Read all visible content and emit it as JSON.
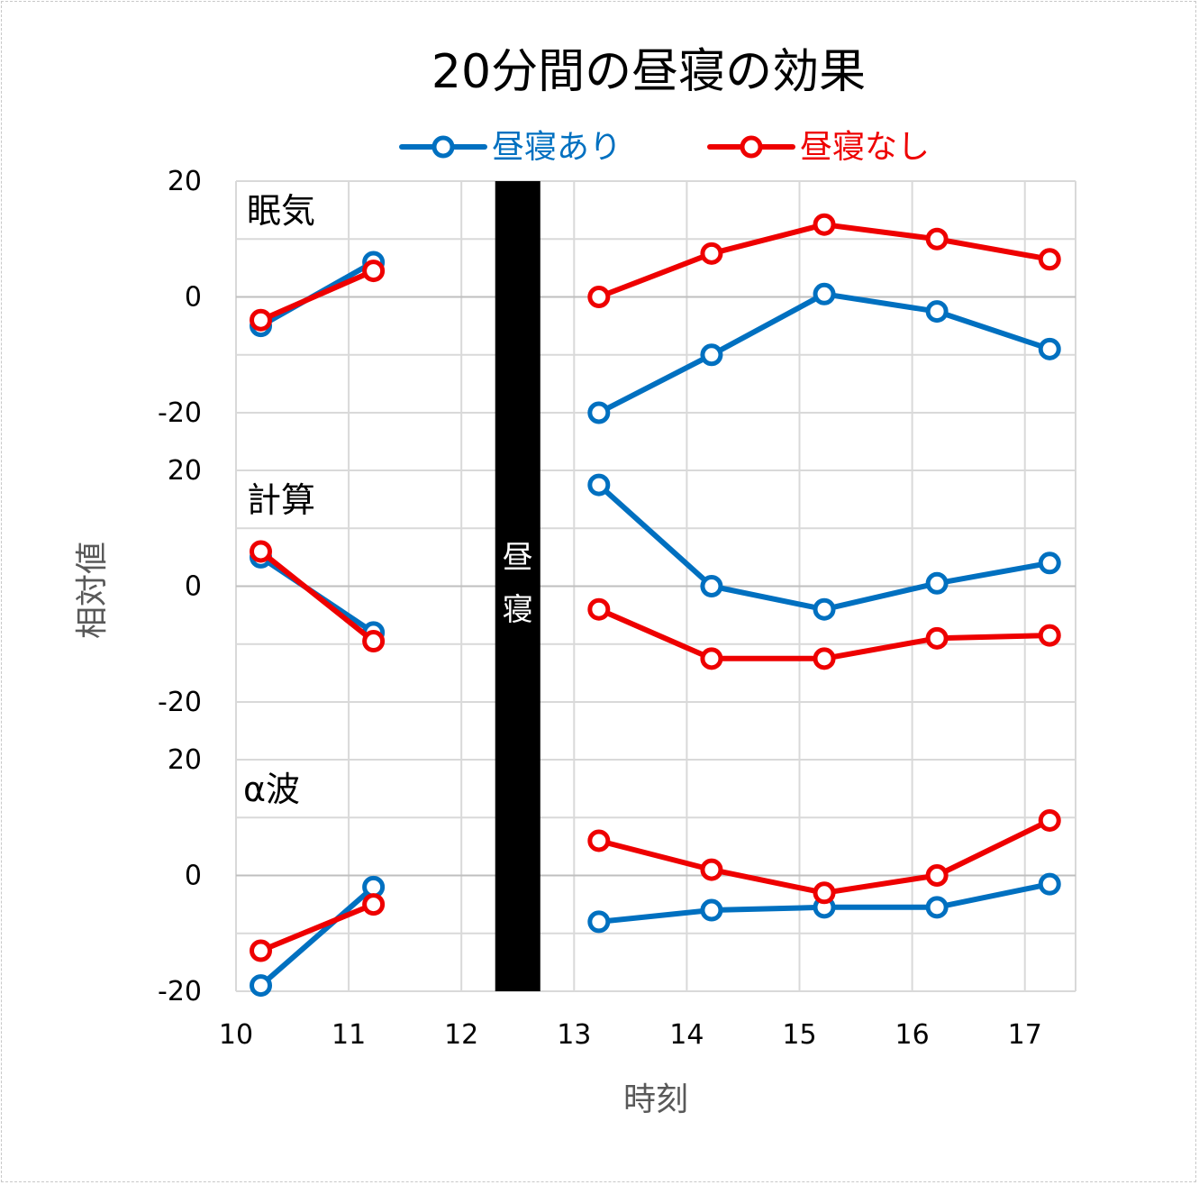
{
  "chart_data": {
    "type": "line",
    "title": "20分間の昼寝の効果",
    "xlabel": "時刻",
    "ylabel": "相対値",
    "x_ticks": [
      10,
      11,
      12,
      13,
      14,
      15,
      16,
      17
    ],
    "xlim": [
      10,
      17.45
    ],
    "legend": {
      "placement": "top",
      "entries": [
        "昼寝あり",
        "昼寝なし"
      ]
    },
    "series_colors": {
      "昼寝あり": "#0070c0",
      "昼寝なし": "#ee0000"
    },
    "grid": true,
    "nap": {
      "label_chars": [
        "昼",
        "寝"
      ],
      "x_start": 12.3,
      "x_end": 12.7,
      "color": "#000000"
    },
    "panels": [
      {
        "label": "眠気",
        "ylim": [
          -20,
          20
        ],
        "y_ticks": [
          20,
          0,
          -20
        ],
        "series": [
          {
            "name": "昼寝あり",
            "segments": [
              {
                "x": [
                  10.22,
                  11.22
                ],
                "y": [
                  -5,
                  6
                ]
              },
              {
                "x": [
                  13.22,
                  14.22,
                  15.22,
                  16.22,
                  17.22
                ],
                "y": [
                  -20,
                  -10,
                  0.5,
                  -2.5,
                  -9
                ]
              }
            ]
          },
          {
            "name": "昼寝なし",
            "segments": [
              {
                "x": [
                  10.22,
                  11.22
                ],
                "y": [
                  -4,
                  4.5
                ]
              },
              {
                "x": [
                  13.22,
                  14.22,
                  15.22,
                  16.22,
                  17.22
                ],
                "y": [
                  0,
                  7.5,
                  12.5,
                  10,
                  6.5
                ]
              }
            ]
          }
        ]
      },
      {
        "label": "計算",
        "ylim": [
          -20,
          20
        ],
        "y_ticks": [
          20,
          0,
          -20
        ],
        "series": [
          {
            "name": "昼寝あり",
            "segments": [
              {
                "x": [
                  10.22,
                  11.22
                ],
                "y": [
                  5,
                  -8
                ]
              },
              {
                "x": [
                  13.22,
                  14.22,
                  15.22,
                  16.22,
                  17.22
                ],
                "y": [
                  17.5,
                  0,
                  -4,
                  0.5,
                  4
                ]
              }
            ]
          },
          {
            "name": "昼寝なし",
            "segments": [
              {
                "x": [
                  10.22,
                  11.22
                ],
                "y": [
                  6,
                  -9.5
                ]
              },
              {
                "x": [
                  13.22,
                  14.22,
                  15.22,
                  16.22,
                  17.22
                ],
                "y": [
                  -4,
                  -12.5,
                  -12.5,
                  -9,
                  -8.5
                ]
              }
            ]
          }
        ]
      },
      {
        "label": "α波",
        "ylim": [
          -20,
          20
        ],
        "y_ticks": [
          20,
          0,
          -20
        ],
        "series": [
          {
            "name": "昼寝あり",
            "segments": [
              {
                "x": [
                  10.22,
                  11.22
                ],
                "y": [
                  -19,
                  -2
                ]
              },
              {
                "x": [
                  13.22,
                  14.22,
                  15.22,
                  16.22,
                  17.22
                ],
                "y": [
                  -8,
                  -6,
                  -5.5,
                  -5.5,
                  -1.5
                ]
              }
            ]
          },
          {
            "name": "昼寝なし",
            "segments": [
              {
                "x": [
                  10.22,
                  11.22
                ],
                "y": [
                  -13,
                  -5
                ]
              },
              {
                "x": [
                  13.22,
                  14.22,
                  15.22,
                  16.22,
                  17.22
                ],
                "y": [
                  6,
                  1,
                  -3,
                  0,
                  9.5
                ]
              }
            ]
          }
        ]
      }
    ]
  }
}
